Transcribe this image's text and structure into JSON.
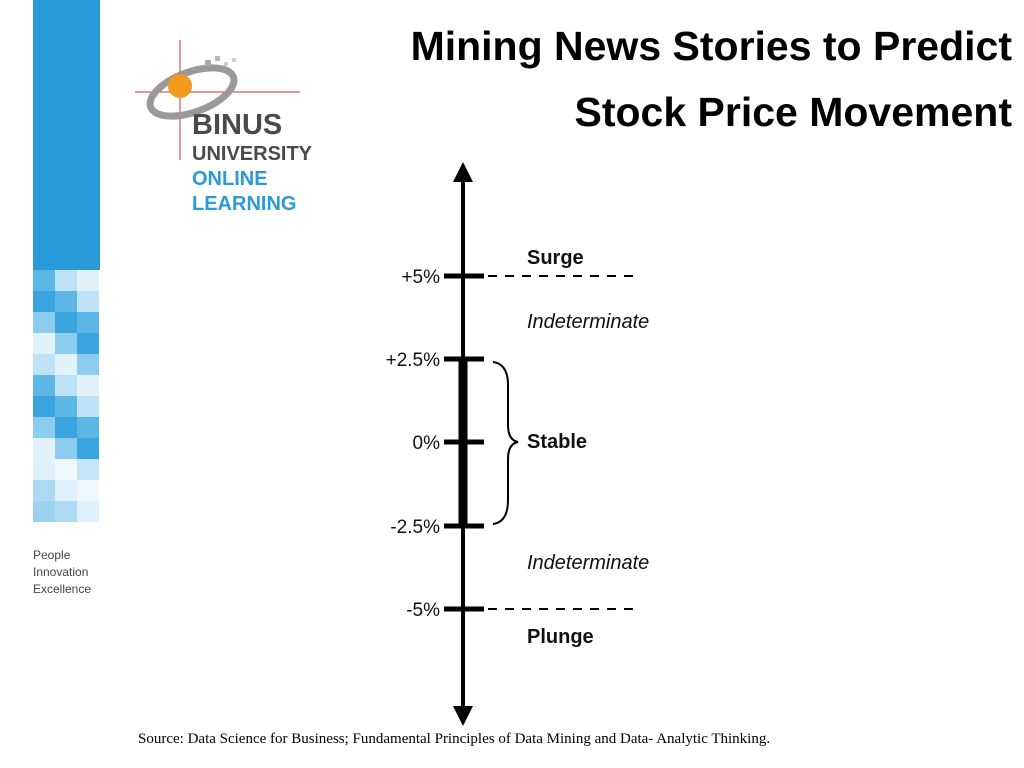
{
  "logo": {
    "name": "BINUS",
    "line2": "UNIVERSITY",
    "line3": "ONLINE",
    "line4": "LEARNING"
  },
  "tagline": [
    "People",
    "Innovation",
    "Excellence"
  ],
  "title": [
    "Mining News Stories to Predict",
    "Stock Price Movement"
  ],
  "diagram": {
    "ticks": [
      "+5%",
      "+2.5%",
      "0%",
      "-2.5%",
      "-5%"
    ],
    "regions": [
      "Surge",
      "Indeterminate",
      "Stable",
      "Indeterminate",
      "Plunge"
    ]
  },
  "source": {
    "label": "Source",
    "text": ": Data Science for Business; Fundamental Principles of Data Mining and Data- Analytic Thinking."
  }
}
